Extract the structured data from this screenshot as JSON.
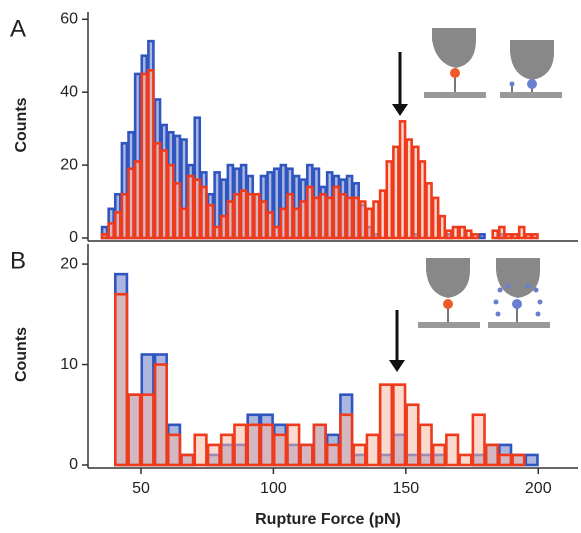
{
  "chart_data": [
    {
      "type": "histogram",
      "panel_label": "A",
      "ylabel": "Counts",
      "xlim": [
        30,
        215
      ],
      "ylim": [
        0,
        62
      ],
      "yticks": [
        0,
        20,
        40,
        60
      ],
      "bins": [
        35,
        37.5,
        40,
        42.5,
        45,
        47.5,
        50,
        52.5,
        55,
        57.5,
        60,
        62.5,
        65,
        67.5,
        70,
        72.5,
        75,
        77.5,
        80,
        82.5,
        85,
        87.5,
        90,
        92.5,
        95,
        97.5,
        100,
        102.5,
        105,
        107.5,
        110,
        112.5,
        115,
        117.5,
        120,
        122.5,
        125,
        127.5,
        130,
        132.5,
        135,
        137.5,
        140,
        142.5,
        145,
        147.5,
        150,
        152.5,
        155,
        157.5,
        160,
        162.5,
        165,
        167.5,
        170,
        172.5,
        175,
        177.5,
        180,
        182.5,
        185,
        187.5,
        190,
        192.5,
        195,
        197.5,
        200,
        202.5,
        205
      ],
      "series": [
        {
          "color": "#2f55c0",
          "fill": "#a8b3dd",
          "values": [
            3,
            8,
            12,
            26,
            29,
            45,
            50,
            54,
            38,
            31,
            29,
            28,
            27,
            20,
            33,
            18,
            12,
            18,
            16,
            20,
            19,
            20,
            17,
            12,
            17,
            18,
            19,
            20,
            19,
            17,
            16,
            20,
            19,
            14,
            18,
            17,
            16,
            17,
            15,
            9,
            3,
            1,
            0,
            0,
            0,
            0,
            0,
            1,
            0,
            0,
            0,
            0,
            1,
            0,
            0,
            0,
            0,
            1,
            0,
            0,
            1,
            0,
            0,
            0,
            0,
            0,
            0,
            0
          ]
        },
        {
          "color": "#ef3b1c",
          "fill": "#f6b9a8",
          "values": [
            1,
            4,
            7,
            12,
            19,
            21,
            45,
            46,
            26,
            24,
            20,
            15,
            8,
            17,
            16,
            14,
            9,
            3,
            6,
            10,
            12,
            13,
            12,
            12,
            10,
            7,
            3,
            8,
            12,
            8,
            10,
            14,
            11,
            12,
            11,
            14,
            12,
            11,
            11,
            10,
            8,
            10,
            13,
            21,
            25,
            32,
            27,
            25,
            21,
            15,
            11,
            6,
            2,
            3,
            3,
            2,
            1,
            0,
            0,
            2,
            3,
            1,
            1,
            3,
            1,
            1,
            0,
            0
          ]
        }
      ]
    },
    {
      "type": "histogram",
      "panel_label": "B",
      "ylabel": "Counts",
      "xlabel": "Rupture Force (pN)",
      "xlim": [
        30,
        215
      ],
      "ylim": [
        0,
        22
      ],
      "yticks": [
        0,
        10,
        20
      ],
      "xticks": [
        50,
        100,
        150,
        200
      ],
      "bins": [
        40,
        45,
        50,
        55,
        60,
        65,
        70,
        75,
        80,
        85,
        90,
        95,
        100,
        105,
        110,
        115,
        120,
        125,
        130,
        135,
        140,
        145,
        150,
        155,
        160,
        165,
        170,
        175,
        180,
        185,
        190,
        195,
        200,
        205
      ],
      "series": [
        {
          "color": "#2f55c0",
          "fill": "#a8b3dd",
          "values": [
            19,
            7,
            11,
            11,
            4,
            1,
            0,
            1,
            2,
            2,
            5,
            5,
            4,
            2,
            2,
            4,
            3,
            7,
            1,
            0,
            1,
            3,
            1,
            1,
            1,
            0,
            0,
            1,
            2,
            2,
            1,
            1,
            0
          ]
        },
        {
          "color": "#ef3b1c",
          "fill": "#f6b9a8",
          "values": [
            17,
            7,
            7,
            10,
            3,
            1,
            3,
            2,
            3,
            4,
            4,
            4,
            3,
            4,
            2,
            4,
            2,
            5,
            2,
            3,
            8,
            8,
            6,
            4,
            2,
            3,
            1,
            5,
            2,
            1,
            1,
            0,
            0
          ]
        }
      ]
    }
  ]
}
